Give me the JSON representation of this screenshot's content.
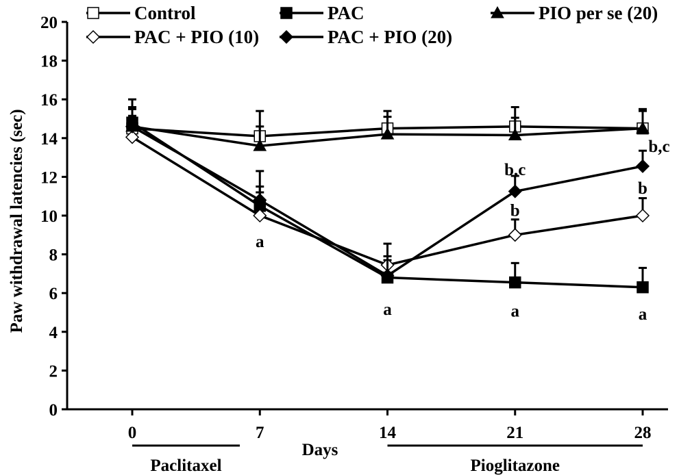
{
  "chart_data": {
    "type": "line",
    "xlabel": "Days",
    "ylabel": "Paw withdrawal latencies (sec)",
    "x": [
      0,
      7,
      14,
      21,
      28
    ],
    "xlim": [
      0,
      28
    ],
    "ylim": [
      0,
      20
    ],
    "yticks": [
      0,
      2,
      4,
      6,
      8,
      10,
      12,
      14,
      16,
      18,
      20
    ],
    "grid": false,
    "legend_position": "top",
    "series": [
      {
        "name": "Control",
        "marker": "square-open",
        "values": [
          14.5,
          14.1,
          14.5,
          14.6,
          14.5
        ],
        "errors": [
          1.0,
          1.3,
          0.9,
          1.0,
          1.0
        ]
      },
      {
        "name": "PAC",
        "marker": "square-filled",
        "values": [
          14.8,
          10.5,
          6.8,
          6.55,
          6.3
        ],
        "errors": [
          1.2,
          1.0,
          0.9,
          1.0,
          1.0
        ]
      },
      {
        "name": "PIO per se (20)",
        "marker": "triangle-filled",
        "values": [
          14.6,
          13.6,
          14.2,
          14.15,
          14.5
        ],
        "errors": [
          0.9,
          1.0,
          0.9,
          0.9,
          0.9
        ]
      },
      {
        "name": "PAC + PIO (10)",
        "marker": "diamond-open",
        "values": [
          14.05,
          10.0,
          7.45,
          9.0,
          10.0
        ],
        "errors": [
          1.1,
          1.2,
          1.1,
          0.8,
          0.9
        ]
      },
      {
        "name": "PAC + PIO (20)",
        "marker": "diamond-filled",
        "values": [
          14.6,
          10.8,
          6.9,
          11.25,
          12.55
        ],
        "errors": [
          1.0,
          1.5,
          1.0,
          0.8,
          0.8
        ]
      }
    ],
    "annotations": [
      {
        "text": "a",
        "x": 7,
        "y": 8.7
      },
      {
        "text": "a",
        "x": 14,
        "y": 5.2
      },
      {
        "text": "a",
        "x": 21,
        "y": 5.1
      },
      {
        "text": "a",
        "x": 28,
        "y": 4.95
      },
      {
        "text": "b",
        "x": 21,
        "y": 10.3
      },
      {
        "text": "b,c",
        "x": 21,
        "y": 12.4
      },
      {
        "text": "b",
        "x": 28,
        "y": 11.45
      },
      {
        "text": "b,c",
        "x": 28.9,
        "y": 13.6
      }
    ],
    "treatment_bars": [
      {
        "label": "Paclitaxel",
        "from": 0,
        "to": 5.9
      },
      {
        "label": "Pioglitazone",
        "from": 14,
        "to": 28
      }
    ]
  }
}
